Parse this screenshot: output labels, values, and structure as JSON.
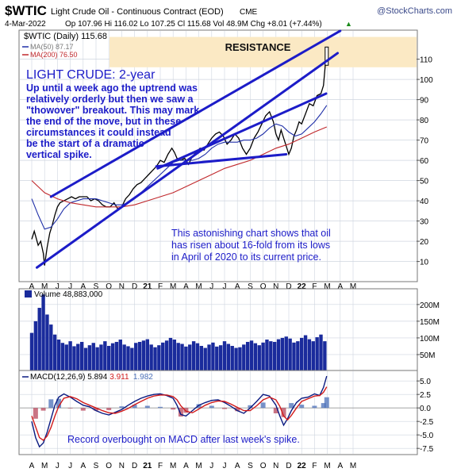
{
  "header": {
    "symbol": "$WTIC",
    "name": "Light Crude Oil - Continuous Contract (EOD)",
    "exchange": "CME",
    "brand": "@StockCharts.com",
    "date": "4-Mar-2022",
    "ohlc": "Op 107.96  Hi 116.02  Lo 107.25  Cl 115.68  Vol 48.9M  Chg +8.01 (+7.44%)",
    "chg_arrow": "▲"
  },
  "colors": {
    "background": "#ffffff",
    "price_line": "#000000",
    "ma50": "#1f2fa8",
    "ma200": "#c0282c",
    "trendlines": "#1c1cc8",
    "annotation_text": "#1c1cc8",
    "volume_bars": "#1a2b9c",
    "resistance_band": "#fbe9c4",
    "macd_line": "#0a1a80",
    "macd_signal": "#d11a1a",
    "macd_hist": "#4a6fb8",
    "hist_neg": "#b8455b",
    "grid": "#cfd5df"
  },
  "annotations": {
    "resistance": "RESISTANCE",
    "title": "LIGHT CRUDE: 2-year",
    "paragraph": [
      "Up until a week ago the uptrend was",
      "relatively  orderly but then we saw a",
      "\"thowover\" breakout. This may mark",
      "the end of the move, but in these",
      "circumstances it could instead",
      "be the start of a dramatic",
      "vertical spike."
    ],
    "note": [
      "This astonishing chart shows that oil",
      "has risen about 16-fold from its lows",
      "in April of 2020 to its current price."
    ],
    "macd_note": "Record overbought on MACD after last week's spike."
  },
  "chart_data": [
    {
      "type": "line",
      "title": "$WTIC (Daily) 115.68",
      "x_labels": [
        "A",
        "M",
        "J",
        "J",
        "A",
        "S",
        "O",
        "N",
        "D",
        "21",
        "F",
        "M",
        "A",
        "M",
        "J",
        "J",
        "A",
        "S",
        "O",
        "N",
        "D",
        "22",
        "F",
        "M",
        "A",
        "M"
      ],
      "x_label_positions": [
        0,
        1,
        2,
        3,
        4,
        5,
        6,
        7,
        8,
        9,
        10,
        11,
        12,
        13,
        14,
        15,
        16,
        17,
        18,
        19,
        20,
        21,
        22,
        23,
        24,
        25
      ],
      "y_ticks": [
        10,
        20,
        30,
        40,
        50,
        60,
        70,
        80,
        90,
        100,
        110
      ],
      "ylim": [
        2,
        122
      ],
      "grid": true,
      "legend": "top-left",
      "series": [
        {
          "name": "$WTIC (Daily) 115.68",
          "x": [
            0,
            0.2,
            0.5,
            0.7,
            0.9,
            1.0,
            1.2,
            1.4,
            1.6,
            1.8,
            2.0,
            2.2,
            2.5,
            2.8,
            3.1,
            3.4,
            3.7,
            4.0,
            4.3,
            4.6,
            4.9,
            5.2,
            5.5,
            5.8,
            6.1,
            6.4,
            6.7,
            7.0,
            7.3,
            7.6,
            7.9,
            8.2,
            8.5,
            8.8,
            9.1,
            9.4,
            9.7,
            10.0,
            10.3,
            10.6,
            10.9,
            11.1,
            11.3,
            11.6,
            11.9,
            12.2,
            12.5,
            12.8,
            13.1,
            13.4,
            13.7,
            14.0,
            14.3,
            14.6,
            14.9,
            15.2,
            15.5,
            15.8,
            16.1,
            16.4,
            16.7,
            17.0,
            17.3,
            17.6,
            17.9,
            18.2,
            18.5,
            18.8,
            19.0,
            19.2,
            19.4,
            19.6,
            19.8,
            20.0,
            20.2,
            20.4,
            20.6,
            20.8,
            21.0,
            21.3,
            21.6,
            21.9,
            22.2,
            22.5,
            22.7,
            22.85,
            22.95
          ],
          "values": [
            21,
            25,
            18,
            20,
            14,
            8,
            17,
            24,
            28,
            33,
            37,
            39,
            40,
            41,
            42,
            41,
            42,
            42,
            42,
            40,
            41,
            40,
            38,
            37,
            37,
            39,
            36,
            37,
            41,
            43,
            46,
            48,
            49,
            51,
            53,
            55,
            57,
            60,
            59,
            63,
            66,
            64,
            61,
            60,
            61,
            58,
            62,
            64,
            66,
            65,
            68,
            71,
            73,
            74,
            72,
            68,
            70,
            73,
            71,
            66,
            63,
            66,
            71,
            74,
            78,
            82,
            84,
            79,
            73,
            70,
            75,
            71,
            67,
            63,
            66,
            72,
            75,
            79,
            78,
            83,
            88,
            87,
            92,
            93,
            97,
            108,
            115.68
          ]
        },
        {
          "name": "MA(50) 87.17",
          "x": [
            0,
            0.5,
            1.0,
            1.5,
            2.0,
            2.5,
            3.0,
            3.5,
            4.0,
            4.5,
            5.0,
            5.5,
            6.0,
            6.5,
            7.0,
            7.5,
            8.0,
            8.5,
            9.0,
            9.5,
            10.0,
            10.5,
            11.0,
            11.5,
            12.0,
            12.5,
            13.0,
            13.5,
            14.0,
            14.5,
            15.0,
            15.5,
            16.0,
            16.5,
            17.0,
            17.5,
            18.0,
            18.5,
            19.0,
            19.5,
            20.0,
            20.5,
            21.0,
            21.5,
            22.0,
            22.5,
            22.95
          ],
          "values": [
            41,
            33,
            26,
            27,
            31,
            36,
            39,
            40,
            41,
            41,
            41,
            40,
            39,
            38,
            38,
            39,
            41,
            44,
            47,
            50,
            53,
            56,
            59,
            60,
            60,
            60,
            61,
            63,
            66,
            68,
            69,
            69,
            69,
            70,
            70,
            71,
            73,
            76,
            78,
            77,
            74,
            72,
            73,
            76,
            79,
            83,
            87.17
          ]
        },
        {
          "name": "MA(200) 76.50",
          "x": [
            0,
            1,
            2,
            3,
            4,
            5,
            6,
            7,
            8,
            9,
            10,
            11,
            12,
            13,
            14,
            15,
            16,
            17,
            18,
            19,
            20,
            21,
            22,
            22.95
          ],
          "values": [
            50,
            44,
            41,
            39,
            38,
            37,
            37,
            37,
            38,
            40,
            42,
            44,
            47,
            50,
            53,
            56,
            58,
            60,
            63,
            66,
            68,
            71,
            74,
            76.5
          ]
        }
      ],
      "trendlines": [
        {
          "x": [
            0.4,
            23.8
          ],
          "values": [
            7,
            113
          ]
        },
        {
          "x": [
            1.5,
            24.0
          ],
          "values": [
            42,
            124
          ]
        },
        {
          "x": [
            9.8,
            22.9
          ],
          "values": [
            56,
            93
          ]
        },
        {
          "x": [
            9.7,
            19.8
          ],
          "values": [
            57,
            63
          ]
        }
      ]
    },
    {
      "type": "bar",
      "title": "Volume 48,883,000",
      "x": [
        0.0,
        0.3,
        0.6,
        0.9,
        1.2,
        1.5,
        1.8,
        2.1,
        2.4,
        2.7,
        3.0,
        3.3,
        3.6,
        3.9,
        4.2,
        4.5,
        4.8,
        5.1,
        5.4,
        5.7,
        6.0,
        6.3,
        6.6,
        6.9,
        7.2,
        7.5,
        7.8,
        8.1,
        8.4,
        8.7,
        9.0,
        9.3,
        9.6,
        9.9,
        10.2,
        10.5,
        10.8,
        11.1,
        11.4,
        11.7,
        12.0,
        12.3,
        12.6,
        12.9,
        13.2,
        13.5,
        13.8,
        14.1,
        14.4,
        14.7,
        15.0,
        15.3,
        15.6,
        15.9,
        16.2,
        16.5,
        16.8,
        17.1,
        17.4,
        17.7,
        18.0,
        18.3,
        18.6,
        18.9,
        19.2,
        19.5,
        19.8,
        20.1,
        20.4,
        20.7,
        21.0,
        21.3,
        21.6,
        21.9,
        22.2,
        22.5,
        22.8
      ],
      "values": [
        115,
        150,
        190,
        230,
        170,
        140,
        110,
        95,
        85,
        80,
        90,
        75,
        82,
        88,
        70,
        78,
        85,
        72,
        80,
        90,
        76,
        84,
        88,
        95,
        80,
        75,
        70,
        85,
        88,
        92,
        96,
        80,
        72,
        78,
        86,
        92,
        100,
        95,
        85,
        82,
        74,
        80,
        90,
        84,
        76,
        70,
        80,
        86,
        74,
        78,
        90,
        82,
        76,
        70,
        72,
        80,
        88,
        92,
        84,
        78,
        86,
        95,
        90,
        88,
        96,
        100,
        104,
        98,
        86,
        90,
        100,
        108,
        96,
        90,
        102,
        110,
        90
      ],
      "y_ticks": [
        50,
        100,
        150,
        200
      ],
      "y_tick_labels": [
        "50M",
        "100M",
        "150M",
        "200M"
      ],
      "ylim": [
        0,
        240
      ]
    },
    {
      "type": "line",
      "title": "MACD(12,26,9) 5.894, 3.911, 1.982",
      "y_ticks": [
        -7.5,
        -5.0,
        -2.5,
        0.0,
        2.5,
        5.0
      ],
      "ylim": [
        -8.5,
        6.5
      ],
      "series": [
        {
          "name": "MACD(12,26,9) 5.894",
          "x": [
            0,
            0.3,
            0.6,
            0.9,
            1.2,
            1.5,
            1.8,
            2.1,
            2.5,
            3.0,
            3.5,
            4.0,
            4.5,
            5.0,
            5.5,
            6.0,
            6.5,
            7.0,
            7.5,
            8.0,
            8.5,
            9.0,
            9.5,
            10.0,
            10.5,
            11.0,
            11.3,
            11.6,
            12.0,
            12.5,
            13.0,
            13.5,
            14.0,
            14.5,
            15.0,
            15.5,
            16.0,
            16.5,
            17.0,
            17.5,
            18.0,
            18.5,
            19.0,
            19.3,
            19.6,
            19.9,
            20.2,
            20.6,
            21.0,
            21.5,
            22.0,
            22.4,
            22.7,
            22.95
          ],
          "values": [
            -2.5,
            -5.5,
            -7.2,
            -6.5,
            -4.5,
            -2.0,
            0.5,
            2.0,
            2.6,
            2.0,
            1.2,
            0.5,
            0.2,
            -0.5,
            -1.0,
            -1.3,
            -0.8,
            -0.3,
            0.5,
            1.2,
            1.8,
            2.2,
            2.5,
            2.6,
            2.3,
            1.8,
            0.5,
            -1.2,
            -1.5,
            -0.5,
            0.5,
            1.0,
            1.4,
            1.5,
            1.0,
            0.3,
            -0.5,
            -1.0,
            0.0,
            1.2,
            2.5,
            2.2,
            0.5,
            -1.5,
            -3.2,
            -2.0,
            -0.5,
            1.0,
            1.8,
            2.0,
            2.6,
            2.3,
            3.8,
            5.894
          ]
        },
        {
          "name": "3.911",
          "x": [
            0,
            0.3,
            0.6,
            0.9,
            1.2,
            1.5,
            1.8,
            2.1,
            2.5,
            3.0,
            3.5,
            4.0,
            4.5,
            5.0,
            5.5,
            6.0,
            6.5,
            7.0,
            7.5,
            8.0,
            8.5,
            9.0,
            9.5,
            10.0,
            10.5,
            11.0,
            11.3,
            11.6,
            12.0,
            12.5,
            13.0,
            13.5,
            14.0,
            14.5,
            15.0,
            15.5,
            16.0,
            16.5,
            17.0,
            17.5,
            18.0,
            18.5,
            19.0,
            19.3,
            19.6,
            19.9,
            20.2,
            20.6,
            21.0,
            21.5,
            22.0,
            22.4,
            22.7,
            22.95
          ],
          "values": [
            -1.5,
            -3.5,
            -5.5,
            -6.0,
            -5.2,
            -3.6,
            -1.5,
            0.3,
            1.8,
            2.1,
            1.7,
            1.0,
            0.5,
            0.0,
            -0.5,
            -0.9,
            -1.0,
            -0.6,
            -0.1,
            0.6,
            1.2,
            1.8,
            2.2,
            2.4,
            2.4,
            2.1,
            1.5,
            0.4,
            -0.6,
            -0.9,
            -0.2,
            0.5,
            1.0,
            1.3,
            1.2,
            0.7,
            0.1,
            -0.5,
            -0.5,
            0.4,
            1.5,
            2.0,
            1.5,
            0.3,
            -1.5,
            -2.2,
            -1.4,
            0.0,
            1.2,
            1.7,
            2.2,
            2.3,
            2.9,
            3.911
          ]
        }
      ],
      "histogram": {
        "name": "1.982",
        "x": [
          0.3,
          0.9,
          1.5,
          2.1,
          3.0,
          4.0,
          5.0,
          6.0,
          7.0,
          8.0,
          9.0,
          10.0,
          11.0,
          11.6,
          12.0,
          13.0,
          14.0,
          15.0,
          16.0,
          17.0,
          18.0,
          19.0,
          19.6,
          20.2,
          21.0,
          22.0,
          22.4,
          22.7,
          22.95
        ],
        "values": [
          -2.0,
          -0.5,
          1.6,
          1.7,
          -0.1,
          -0.5,
          -0.5,
          -0.4,
          0.3,
          0.6,
          0.4,
          0.2,
          -0.3,
          -1.6,
          -0.9,
          0.7,
          0.4,
          -0.2,
          -0.6,
          0.5,
          1.0,
          -1.0,
          -1.7,
          0.9,
          0.6,
          0.4,
          0.0,
          0.9,
          1.982
        ]
      }
    }
  ]
}
